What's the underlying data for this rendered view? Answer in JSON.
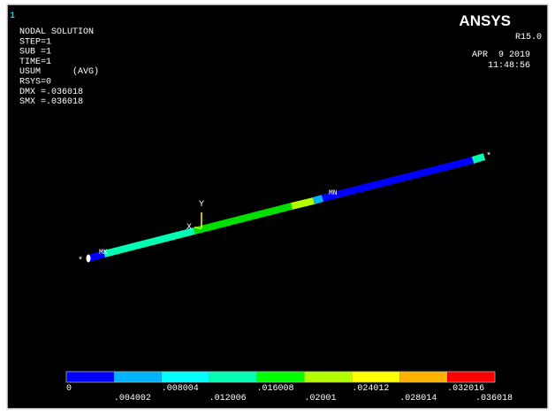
{
  "window": {
    "number": "1"
  },
  "info": {
    "lines": [
      "NODAL SOLUTION",
      "STEP=1",
      "SUB =1",
      "TIME=1",
      "USUM      (AVG)",
      "RSYS=0",
      "DMX =.036018",
      "SMX =.036018"
    ]
  },
  "brand": {
    "logo": "ANSYS",
    "version": "R15.0",
    "date": "APR  9 2019",
    "time": "11:48:56"
  },
  "model": {
    "min_label": "MN",
    "max_label": "MX",
    "axis_x": "X",
    "axis_y": "Y",
    "end_marker": "*"
  },
  "legend": {
    "labels": [
      "0",
      ".004002",
      ".008004",
      ".012006",
      ".016008",
      ".02001",
      ".024012",
      ".028014",
      ".032016",
      ".036018"
    ],
    "colors": [
      "#0000ff",
      "#00b2ff",
      "#00ffff",
      "#00ffb2",
      "#00ff00",
      "#b2ff00",
      "#ffff00",
      "#ffb200",
      "#ff0000"
    ]
  }
}
